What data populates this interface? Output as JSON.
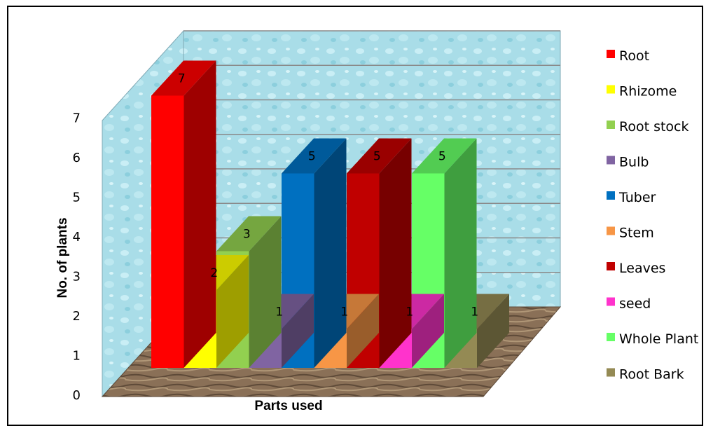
{
  "chart_data": {
    "type": "bar",
    "categories": [
      "Root",
      "Rhizome",
      "Root stock",
      "Bulb",
      "Tuber",
      "Stem",
      "Leaves",
      "seed",
      "Whole Plant",
      "Root Bark"
    ],
    "values": [
      7,
      2,
      3,
      1,
      5,
      1,
      5,
      1,
      5,
      1
    ],
    "colors": [
      "#ff0000",
      "#ffff00",
      "#92d050",
      "#8064a2",
      "#0070c0",
      "#f79646",
      "#c00000",
      "#ff33cc",
      "#66ff66",
      "#948a54"
    ],
    "y_ticks": [
      "0",
      "1",
      "2",
      "3",
      "4",
      "5",
      "6",
      "7"
    ],
    "ylim": [
      0,
      7
    ],
    "xlabel": "Parts used",
    "ylabel": "No. of plants",
    "legend_position": "right",
    "grid": true,
    "style": "3d"
  }
}
